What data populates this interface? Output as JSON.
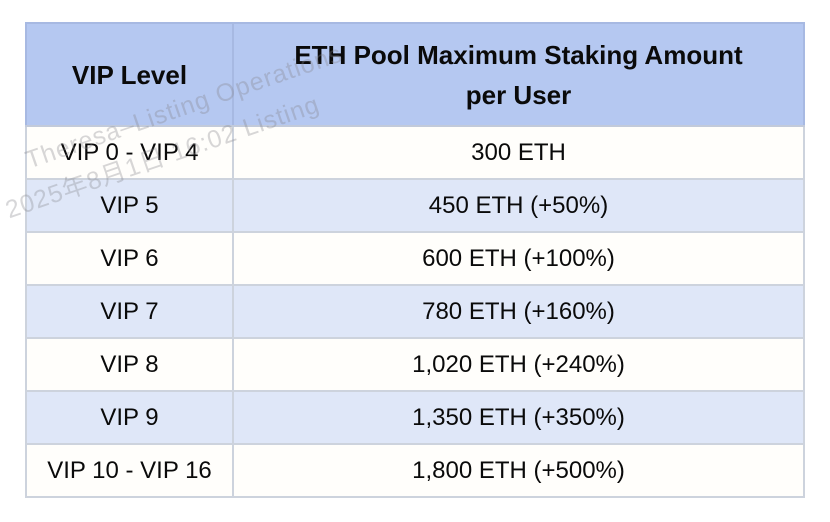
{
  "chart_data": {
    "type": "table",
    "columns": [
      "VIP Level",
      "ETH Pool Maximum Staking Amount per User"
    ],
    "rows": [
      [
        "VIP 0 - VIP 4",
        "300 ETH"
      ],
      [
        "VIP 5",
        "450 ETH (+50%)"
      ],
      [
        "VIP 6",
        "600 ETH (+100%)"
      ],
      [
        "VIP 7",
        "780 ETH (+160%)"
      ],
      [
        "VIP 8",
        "1,020 ETH (+240%)"
      ],
      [
        "VIP 9",
        "1,350 ETH (+350%)"
      ],
      [
        "VIP 10 - VIP 16",
        "1,800 ETH (+500%)"
      ]
    ]
  },
  "table": {
    "header": {
      "col1": "VIP Level",
      "col2": "ETH Pool Maximum Staking Amount\nper User"
    },
    "rows": [
      {
        "level": "VIP 0 - VIP 4",
        "amount": "300 ETH"
      },
      {
        "level": "VIP 5",
        "amount": "450 ETH (+50%)"
      },
      {
        "level": "VIP 6",
        "amount": "600 ETH (+100%)"
      },
      {
        "level": "VIP 7",
        "amount": "780 ETH (+160%)"
      },
      {
        "level": "VIP 8",
        "amount": "1,020 ETH (+240%)"
      },
      {
        "level": "VIP 9",
        "amount": "1,350 ETH (+350%)"
      },
      {
        "level": "VIP 10 - VIP 16",
        "amount": "1,800 ETH (+500%)"
      }
    ]
  },
  "watermark": {
    "line1": "Theresa–Listing Operations",
    "line2": "2025年8月1日 16:02 Listing"
  },
  "colors": {
    "header_bg": "#b5c8f1",
    "row_alt_bg": "#dfe7f8",
    "row_bg": "#fffefb",
    "border_light": "#cdd3dd",
    "border_header": "#a7b9e2",
    "text": "#0a0a0a"
  }
}
